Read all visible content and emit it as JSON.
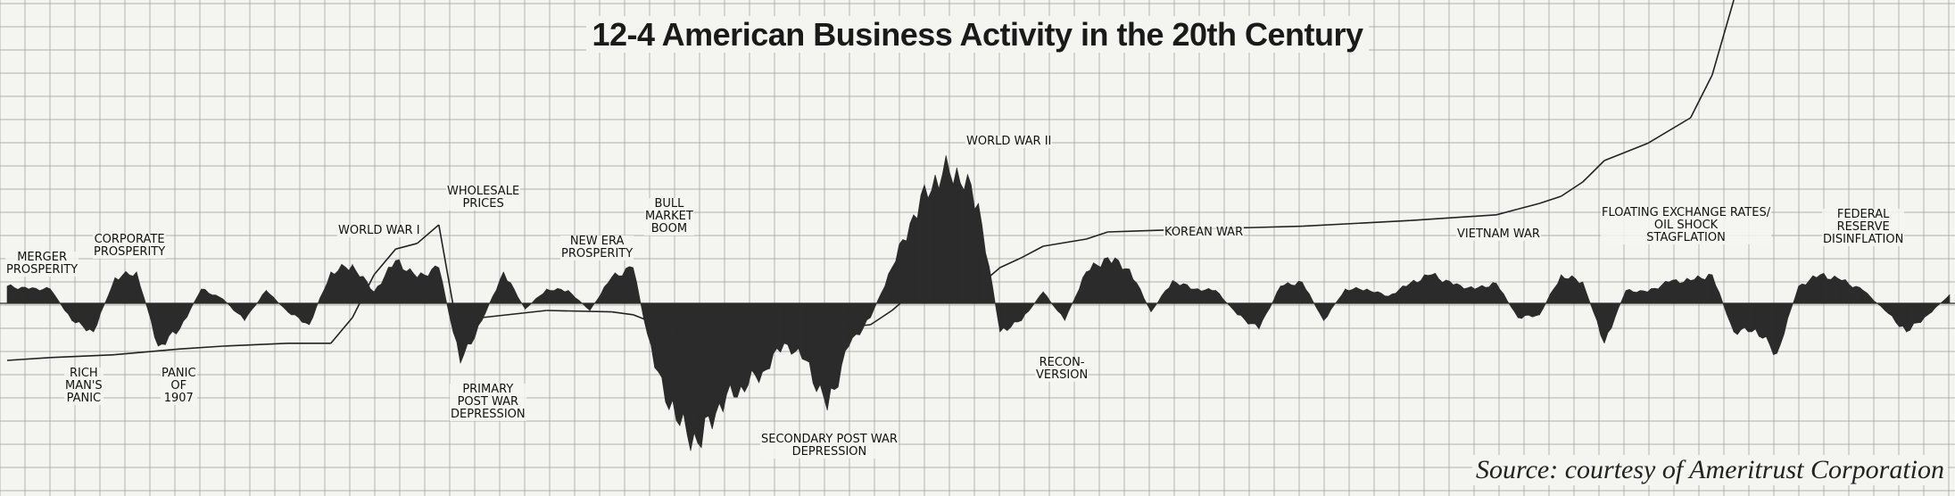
{
  "title": "12-4 American Business Activity in the 20th Century",
  "source": "Source: courtesy of Ameritrust Corporation",
  "colors": {
    "fill": "#2b2b2b",
    "grid": "#9a9a9a",
    "background": "#f4f4f1",
    "line": "#222222"
  },
  "chart_data": {
    "type": "area",
    "title": "12-4 American Business Activity in the 20th Century",
    "xlim": [
      1900,
      1990
    ],
    "grid": true,
    "series": [
      {
        "role": "activity",
        "x": [
          1900,
          1901,
          1902,
          1903,
          1904,
          1905,
          1906,
          1907,
          1908,
          1909,
          1910,
          1911,
          1912,
          1913,
          1914,
          1915,
          1916,
          1917,
          1918,
          1919,
          1920,
          1921,
          1922,
          1923,
          1924,
          1925,
          1926,
          1927,
          1928,
          1929,
          1930,
          1931,
          1932,
          1933,
          1934,
          1935,
          1936,
          1937,
          1938,
          1939,
          1940,
          1941,
          1942,
          1943,
          1944,
          1945,
          1946,
          1947,
          1948,
          1949,
          1950,
          1951,
          1952,
          1953,
          1954,
          1955,
          1956,
          1957,
          1958,
          1959,
          1960,
          1961,
          1962,
          1963,
          1964,
          1965,
          1966,
          1967,
          1968,
          1969,
          1970,
          1971,
          1972,
          1973,
          1974,
          1975,
          1976,
          1977,
          1978,
          1979,
          1980,
          1981,
          1982,
          1983,
          1984,
          1985,
          1986,
          1987,
          1988,
          1989,
          1990
        ],
        "values": [
          12,
          10,
          10,
          -12,
          -20,
          18,
          22,
          -30,
          -18,
          10,
          3,
          -12,
          9,
          -6,
          -15,
          22,
          27,
          8,
          30,
          18,
          25,
          -42,
          -12,
          22,
          -4,
          10,
          9,
          -5,
          18,
          25,
          -45,
          -82,
          -98,
          -70,
          -58,
          -48,
          -28,
          -40,
          -75,
          -30,
          -10,
          25,
          62,
          90,
          95,
          70,
          -20,
          -12,
          8,
          -12,
          22,
          32,
          24,
          -6,
          16,
          10,
          9,
          -8,
          -18,
          12,
          15,
          -12,
          10,
          10,
          5,
          14,
          20,
          13,
          10,
          14,
          -10,
          -8,
          20,
          15,
          -28,
          9,
          8,
          15,
          16,
          20,
          -20,
          -18,
          -35,
          12,
          20,
          16,
          9,
          -5,
          -20,
          -8,
          6
        ]
      },
      {
        "role": "wholesale-prices",
        "x": [
          1900,
          1902,
          1905,
          1908,
          1910,
          1913,
          1915,
          1916,
          1917,
          1918,
          1919,
          1920,
          1921,
          1922,
          1925,
          1928,
          1929,
          1930,
          1931,
          1932,
          1933,
          1935,
          1938,
          1940,
          1941,
          1942,
          1945,
          1946,
          1947,
          1948,
          1950,
          1951,
          1955,
          1960,
          1965,
          1969,
          1970,
          1971,
          1972,
          1973,
          1974,
          1976,
          1978,
          1979,
          1980
        ],
        "values": [
          -40,
          -38,
          -36,
          -32,
          -30,
          -28,
          -28,
          -10,
          20,
          38,
          42,
          55,
          -30,
          -10,
          -5,
          -6,
          -8,
          -14,
          -20,
          -25,
          -24,
          -20,
          -18,
          -15,
          -5,
          8,
          12,
          25,
          32,
          40,
          45,
          50,
          52,
          54,
          58,
          62,
          66,
          70,
          75,
          85,
          100,
          112,
          130,
          160,
          220
        ]
      }
    ],
    "annotations": [
      "MERGER\nPROSPERITY",
      "CORPORATE\nPROSPERITY",
      "RICH\nMAN'S\nPANIC",
      "PANIC\nOF\n1907",
      "WORLD WAR I",
      "WHOLESALE\nPRICES",
      "PRIMARY\nPOST WAR\nDEPRESSION",
      "NEW ERA\nPROSPERITY",
      "BULL\nMARKET\nBOOM",
      "WORLD WAR II",
      "SECONDARY POST WAR\nDEPRESSION",
      "RECON-\nVERSION",
      "KOREAN WAR",
      "VIETNAM WAR",
      "FLOATING EXCHANGE RATES/\nOIL SHOCK\nSTAGFLATION",
      "FEDERAL\nRESERVE\nDISINFLATION"
    ]
  }
}
